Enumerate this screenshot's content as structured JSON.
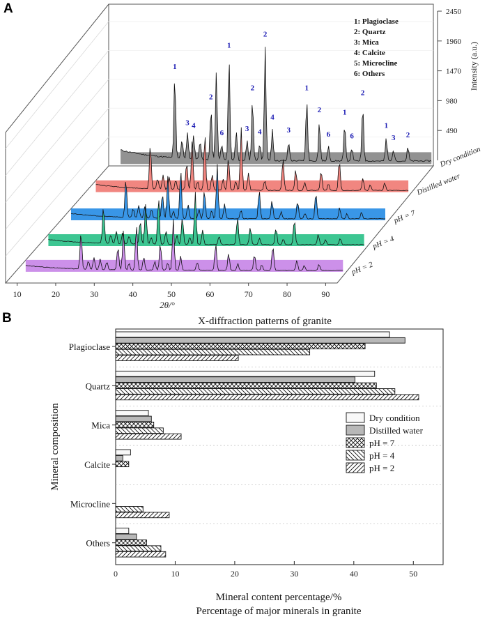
{
  "panel_labels": {
    "a": "A",
    "b": "B"
  },
  "colors": {
    "dry": "#8c8c8c",
    "distilled": "#f08079",
    "ph7": "#2e90e6",
    "ph4": "#33c38c",
    "ph2": "#c98ae8",
    "peak_label": "#1a1ab3"
  },
  "chart_data": [
    {
      "type": "line",
      "title": "X-diffraction patterns of granite",
      "xlabel": "2θ/°",
      "zlabel": "Intensity (a.u.)",
      "x_ticks": [
        10,
        20,
        30,
        40,
        50,
        60,
        70,
        80,
        90
      ],
      "z_ticks": [
        490,
        980,
        1470,
        1960,
        2450
      ],
      "zlim": [
        0,
        2450
      ],
      "legend": [
        "1: Plagioclase",
        "2: Quartz",
        "3: Mica",
        "4: Calcite",
        "5: Microcline",
        "6: Others"
      ],
      "series": [
        {
          "name": "Dry condition",
          "label": "Dry condition"
        },
        {
          "name": "Distilled water",
          "label": "Distilled water"
        },
        {
          "name": "pH = 7",
          "label": "pH = 7"
        },
        {
          "name": "pH = 4",
          "label": "pH = 4"
        },
        {
          "name": "pH = 2",
          "label": "pH = 2"
        }
      ],
      "peaks": [
        {
          "theta": 22.0,
          "height": 1350,
          "mineral": "1"
        },
        {
          "theta": 24.0,
          "height": 320,
          "mineral": ""
        },
        {
          "theta": 25.5,
          "height": 430,
          "mineral": "3"
        },
        {
          "theta": 27.2,
          "height": 380,
          "mineral": "4"
        },
        {
          "theta": 29.0,
          "height": 300,
          "mineral": ""
        },
        {
          "theta": 32.0,
          "height": 850,
          "mineral": "2"
        },
        {
          "theta": 33.5,
          "height": 1450,
          "mineral": ""
        },
        {
          "theta": 35.0,
          "height": 260,
          "mineral": "6"
        },
        {
          "theta": 37.0,
          "height": 1700,
          "mineral": "1"
        },
        {
          "theta": 39.0,
          "height": 480,
          "mineral": ""
        },
        {
          "theta": 42.0,
          "height": 330,
          "mineral": "3"
        },
        {
          "theta": 43.5,
          "height": 1000,
          "mineral": "2"
        },
        {
          "theta": 45.5,
          "height": 280,
          "mineral": "4"
        },
        {
          "theta": 47.0,
          "height": 1880,
          "mineral": "2"
        },
        {
          "theta": 49.0,
          "height": 520,
          "mineral": "4"
        },
        {
          "theta": 53.5,
          "height": 310,
          "mineral": "3"
        },
        {
          "theta": 58.5,
          "height": 1000,
          "mineral": "1"
        },
        {
          "theta": 62.0,
          "height": 640,
          "mineral": "2"
        },
        {
          "theta": 64.5,
          "height": 240,
          "mineral": "6"
        },
        {
          "theta": 69.0,
          "height": 600,
          "mineral": "1"
        },
        {
          "theta": 71.0,
          "height": 210,
          "mineral": "6"
        },
        {
          "theta": 74.0,
          "height": 920,
          "mineral": "2"
        },
        {
          "theta": 80.5,
          "height": 380,
          "mineral": "1"
        },
        {
          "theta": 82.5,
          "height": 180,
          "mineral": "3"
        },
        {
          "theta": 86.5,
          "height": 230,
          "mineral": "2"
        }
      ]
    },
    {
      "type": "bar",
      "orientation": "horizontal",
      "title": "Percentage of major minerals in granite",
      "xlabel": "Mineral content percentage/%",
      "ylabel": "Mineral composition",
      "xlim": [
        0,
        55
      ],
      "x_ticks": [
        0,
        10,
        20,
        30,
        40,
        50
      ],
      "categories": [
        "Plagioclase",
        "Quartz",
        "Mica",
        "Calcite",
        "Microcline",
        "Others"
      ],
      "series": [
        {
          "name": "Dry condition",
          "values": [
            46,
            43.5,
            5.5,
            2.5,
            0,
            2.2
          ]
        },
        {
          "name": "Distilled water",
          "values": [
            48.6,
            40.2,
            6.0,
            1.2,
            0,
            3.5
          ]
        },
        {
          "name": "pH = 7",
          "values": [
            41.9,
            43.8,
            6.4,
            2.2,
            0,
            5.2
          ]
        },
        {
          "name": "pH = 4",
          "values": [
            32.6,
            46.9,
            8.0,
            0,
            4.6,
            7.6
          ]
        },
        {
          "name": "pH = 2",
          "values": [
            20.6,
            50.9,
            11.0,
            0,
            9.0,
            8.4
          ]
        }
      ],
      "legend": [
        "Dry condition",
        "Distilled water",
        "pH = 7",
        "pH = 4",
        "pH = 2"
      ]
    }
  ]
}
